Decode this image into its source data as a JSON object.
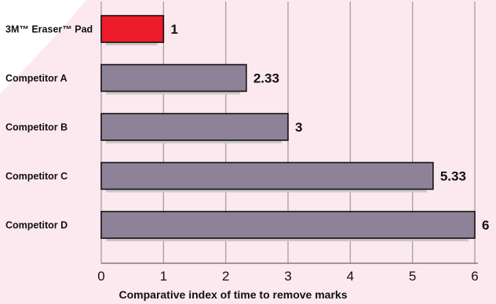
{
  "chart_data": {
    "type": "bar",
    "orientation": "horizontal",
    "categories": [
      "3M™ Eraser™ Pad",
      "Competitor A",
      "Competitor B",
      "Competitor C",
      "Competitor D"
    ],
    "values": [
      1,
      2.33,
      3,
      5.33,
      6
    ],
    "value_labels": [
      "1",
      "2.33",
      "3",
      "5.33",
      "6"
    ],
    "xlabel": "Comparative index of time to remove marks",
    "ylabel": "",
    "xlim": [
      0,
      6
    ],
    "xticks": [
      0,
      1,
      2,
      3,
      4,
      5,
      6
    ],
    "grid": "vertical",
    "colors": {
      "highlight": "#ee1c2b",
      "bar": "#8e8298",
      "shadow": "#c8c8c8",
      "gridline": "#9a9a9a",
      "background_tint": "#fce8ef"
    },
    "highlight_index": 0
  }
}
